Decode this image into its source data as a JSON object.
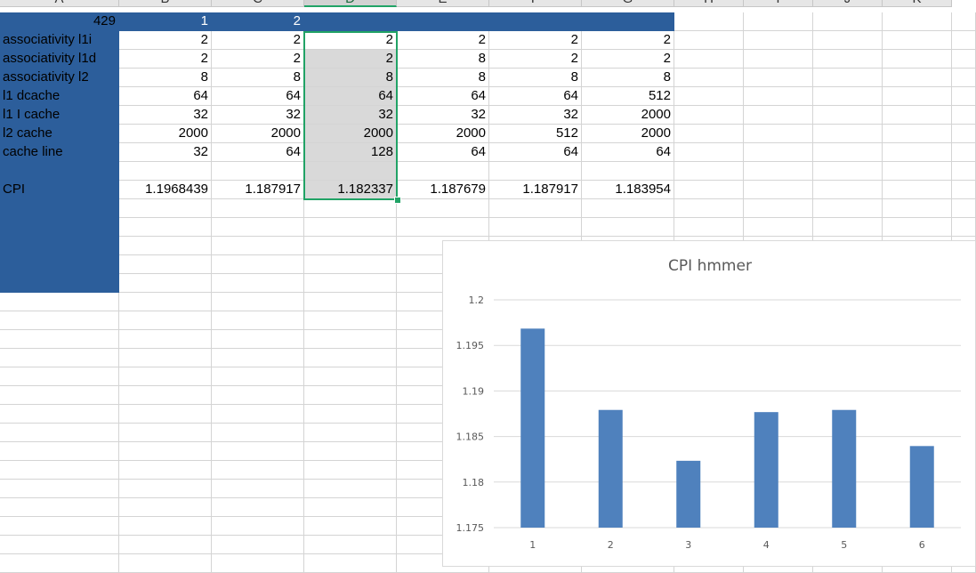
{
  "column_headers": [
    "A",
    "B",
    "C",
    "D",
    "E",
    "F",
    "G",
    "H",
    "I",
    "J",
    "K"
  ],
  "selected_column": "D",
  "row1": {
    "a": "429",
    "b": "1",
    "c": "2"
  },
  "rows": [
    {
      "label": "associativity l1i",
      "values": [
        "2",
        "2",
        "2",
        "2",
        "2",
        "2"
      ]
    },
    {
      "label": "associativity l1d",
      "values": [
        "2",
        "2",
        "2",
        "8",
        "2",
        "2"
      ]
    },
    {
      "label": "associativity l2",
      "values": [
        "8",
        "8",
        "8",
        "8",
        "8",
        "8"
      ]
    },
    {
      "label": "l1 dcache",
      "values": [
        "64",
        "64",
        "64",
        "64",
        "64",
        "512"
      ]
    },
    {
      "label": "l1 I cache",
      "values": [
        "32",
        "32",
        "32",
        "32",
        "32",
        "2000"
      ]
    },
    {
      "label": "l2 cache",
      "values": [
        "2000",
        "2000",
        "2000",
        "2000",
        "512",
        "2000"
      ]
    },
    {
      "label": "cache line",
      "values": [
        "32",
        "64",
        "128",
        "64",
        "64",
        "64"
      ]
    },
    {
      "label": "",
      "values": [
        "",
        "",
        "",
        "",
        "",
        ""
      ]
    },
    {
      "label": "CPI",
      "values": [
        "1.1968439",
        "1.187917",
        "1.182337",
        "1.187679",
        "1.187917",
        "1.183954"
      ]
    }
  ],
  "colors": {
    "header_blue": "#2c5e9b",
    "selection_green": "#21a366",
    "bar": "#4f81bd",
    "selected_fill": "#d9d9d9"
  },
  "chart_data": {
    "type": "bar",
    "title": "CPI hmmer",
    "categories": [
      "1",
      "2",
      "3",
      "4",
      "5",
      "6"
    ],
    "values": [
      1.1968439,
      1.187917,
      1.182337,
      1.187679,
      1.187917,
      1.183954
    ],
    "ylim": [
      1.175,
      1.2
    ],
    "yticks": [
      "1.2",
      "1.195",
      "1.19",
      "1.185",
      "1.18",
      "1.175"
    ],
    "grid": true,
    "legend": "none"
  }
}
